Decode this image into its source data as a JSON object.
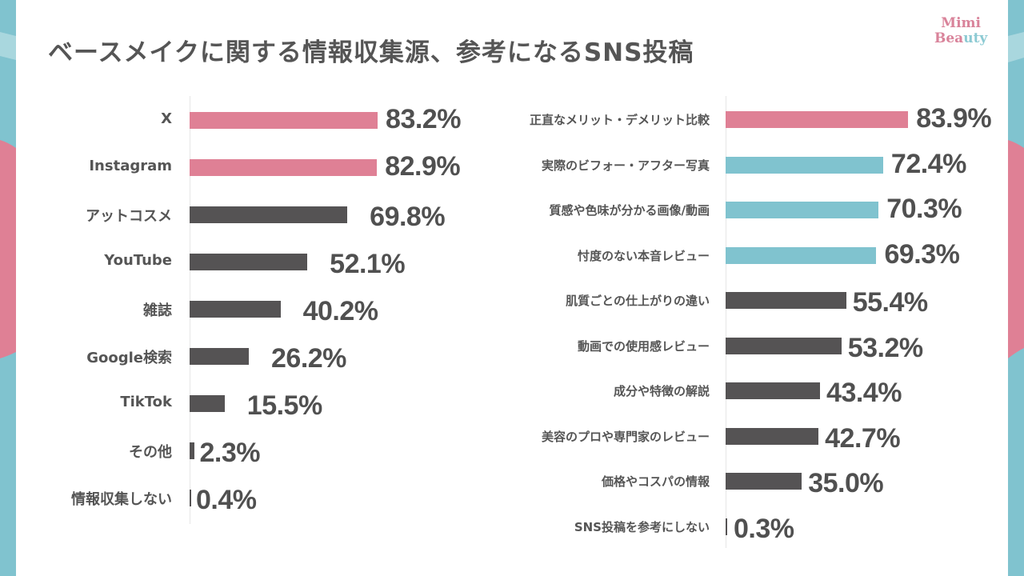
{
  "title": "ベースメイクに関する情報収集源、参考になるSNS投稿",
  "logo": {
    "line1": "Mimi",
    "line2a": "Bea",
    "line2b": "uty"
  },
  "colors": {
    "pink": "#df8095",
    "teal": "#80c3cf",
    "dark": "#555354",
    "text": "#555555"
  },
  "chart_data": [
    {
      "type": "bar",
      "orientation": "horizontal",
      "title": "ベースメイクに関する情報収集源",
      "xlabel": "",
      "ylabel": "",
      "unit": "%",
      "xlim": [
        0,
        100
      ],
      "grid": false,
      "categories": [
        "X",
        "Instagram",
        "アットコスメ",
        "YouTube",
        "雑誌",
        "Google検索",
        "TikTok",
        "その他",
        "情報収集しない"
      ],
      "values": [
        83.2,
        82.9,
        69.8,
        52.1,
        40.2,
        26.2,
        15.5,
        2.3,
        0.4
      ],
      "value_labels": [
        "83.2%",
        "82.9%",
        "69.8%",
        "52.1%",
        "40.2%",
        "26.2%",
        "15.5%",
        "2.3%",
        "0.4%"
      ],
      "bar_colors": [
        "pink",
        "pink",
        "dark",
        "dark",
        "dark",
        "dark",
        "dark",
        "dark",
        "dark"
      ]
    },
    {
      "type": "bar",
      "orientation": "horizontal",
      "title": "参考になるSNS投稿",
      "xlabel": "",
      "ylabel": "",
      "unit": "%",
      "xlim": [
        0,
        100
      ],
      "grid": false,
      "categories": [
        "正直なメリット・デメリット比較",
        "実際のビフォー・アフター写真",
        "質感や色味が分かる画像/動画",
        "忖度のない本音レビュー",
        "肌質ごとの仕上がりの違い",
        "動画での使用感レビュー",
        "成分や特徴の解説",
        "美容のプロや専門家のレビュー",
        "価格やコスパの情報",
        "SNS投稿を参考にしない"
      ],
      "values": [
        83.9,
        72.4,
        70.3,
        69.3,
        55.4,
        53.2,
        43.4,
        42.7,
        35.0,
        0.3
      ],
      "value_labels": [
        "83.9%",
        "72.4%",
        "70.3%",
        "69.3%",
        "55.4%",
        "53.2%",
        "43.4%",
        "42.7%",
        "35.0%",
        "0.3%"
      ],
      "bar_colors": [
        "pink",
        "teal",
        "teal",
        "teal",
        "dark",
        "dark",
        "dark",
        "dark",
        "dark",
        "dark"
      ]
    }
  ]
}
